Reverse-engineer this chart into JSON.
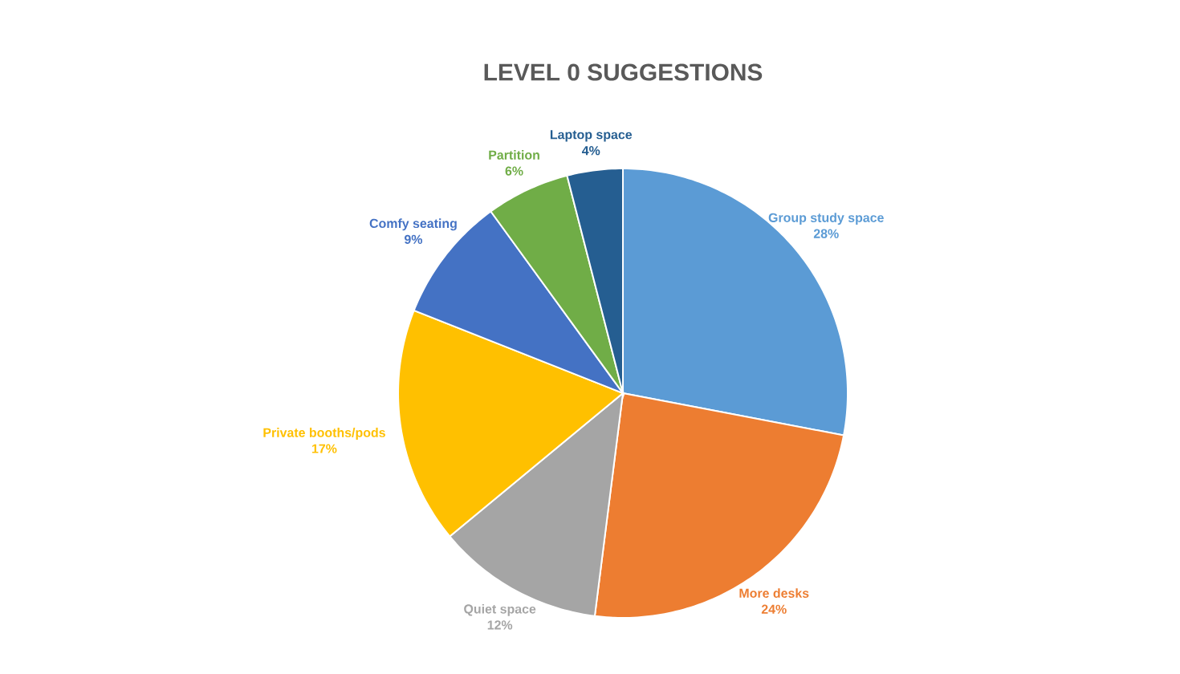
{
  "chart_data": {
    "type": "pie",
    "title": "LEVEL 0 SUGGESTIONS",
    "categories": [
      "Group study space",
      "More desks",
      "Quiet space",
      "Private booths/pods",
      "Comfy seating",
      "Partition",
      "Laptop space"
    ],
    "values": [
      28,
      24,
      12,
      17,
      9,
      6,
      4
    ],
    "value_labels": [
      "28%",
      "24%",
      "12%",
      "17%",
      "9%",
      "6%",
      "4%"
    ],
    "colors": [
      "#5b9bd5",
      "#ed7d31",
      "#a5a5a5",
      "#ffc000",
      "#4472c4",
      "#70ad47",
      "#255e91"
    ]
  }
}
